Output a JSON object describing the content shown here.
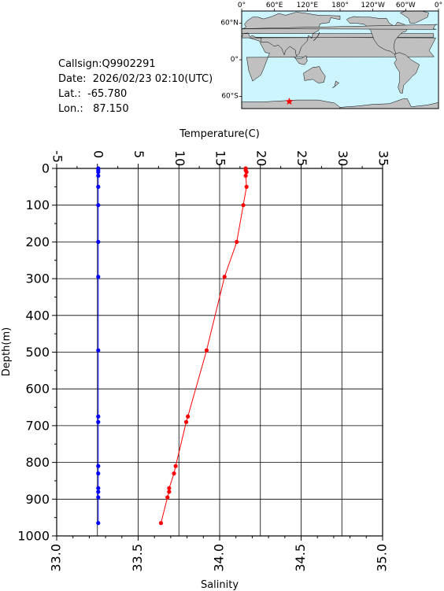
{
  "info": {
    "callsign": "Callsign:Q9902291",
    "date": "Date:  2026/02/23 02:10(UTC)",
    "lat": "Lat.:  -65.780",
    "lon": "Lon.:   87.150"
  },
  "map": {
    "top_labels": [
      "0°",
      "60°E",
      "120°E",
      "180°",
      "120°W",
      "60°W",
      "0°"
    ],
    "lat_labels": [
      "60°N",
      "0°",
      "60°S"
    ],
    "ocean_color": "#ccf5ff",
    "land_color": "#c0c0c0",
    "marker_color": "#ff0000",
    "marker": {
      "lon": 87.15,
      "lat": -65.78
    }
  },
  "chart_data": {
    "type": "line",
    "top_axis": {
      "label": "Temperature(C)",
      "range": [
        -5,
        35
      ],
      "ticks": [
        -5,
        0,
        5,
        10,
        15,
        20,
        25,
        30,
        35
      ]
    },
    "bottom_axis": {
      "label": "Salinity",
      "range": [
        33.0,
        35.0
      ],
      "ticks": [
        "33.0",
        "33.5",
        "34.0",
        "34.5",
        "35.0"
      ]
    },
    "y_axis": {
      "label": "Depth(m)",
      "range": [
        0,
        1000
      ],
      "inverted": true,
      "ticks": [
        0,
        100,
        200,
        300,
        400,
        500,
        600,
        700,
        800,
        900,
        1000
      ]
    },
    "grid": true,
    "series": [
      {
        "color": "#ff0000",
        "axis": "top",
        "points": [
          [
            18.2,
            0
          ],
          [
            18.2,
            5
          ],
          [
            18.3,
            10
          ],
          [
            18.2,
            20
          ],
          [
            18.3,
            50
          ],
          [
            17.9,
            100
          ],
          [
            17.1,
            200
          ],
          [
            15.6,
            295
          ],
          [
            13.4,
            495
          ],
          [
            11.1,
            675
          ],
          [
            10.9,
            690
          ],
          [
            9.6,
            810
          ],
          [
            9.4,
            830
          ],
          [
            8.8,
            870
          ],
          [
            8.8,
            880
          ],
          [
            8.6,
            895
          ],
          [
            7.8,
            965
          ]
        ]
      },
      {
        "color": "#0000ff",
        "axis": "top",
        "points": [
          [
            0.1,
            0
          ],
          [
            0.1,
            5
          ],
          [
            0.1,
            10
          ],
          [
            0.1,
            20
          ],
          [
            0.1,
            50
          ],
          [
            0.1,
            100
          ],
          [
            0.1,
            200
          ],
          [
            0.1,
            295
          ],
          [
            0.1,
            495
          ],
          [
            0.1,
            675
          ],
          [
            0.1,
            690
          ],
          [
            0.1,
            810
          ],
          [
            0.1,
            830
          ],
          [
            0.1,
            870
          ],
          [
            0.1,
            880
          ],
          [
            0.1,
            895
          ],
          [
            0.1,
            965
          ]
        ]
      }
    ]
  }
}
